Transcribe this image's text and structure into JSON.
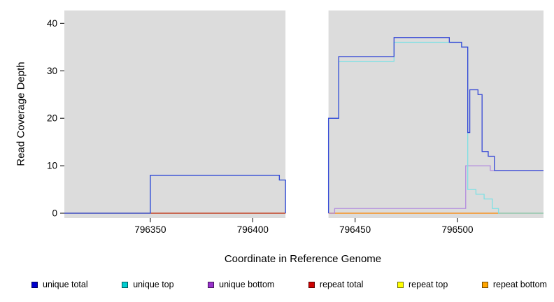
{
  "figure": {
    "xlabel": "Coordinate in Reference Genome",
    "ylabel": "Read Coverage Depth"
  },
  "chart_data": {
    "type": "line",
    "subtype": "step-coverage",
    "title": "",
    "xlabel": "Coordinate in Reference Genome",
    "ylabel": "Read Coverage Depth",
    "xlim": [
      796308,
      796542
    ],
    "ylim": [
      -1.03,
      42.7
    ],
    "xticks": [
      796350,
      796400,
      796450,
      796500
    ],
    "yticks": [
      0,
      10,
      20,
      30,
      40
    ],
    "plot_background": "#dcdcdc",
    "page_background": "#ffffff",
    "grid": false,
    "legend_position": "bottom",
    "gap_region": {
      "from": 796416,
      "to": 796437,
      "color": "#ffffff"
    },
    "draw_order": [
      "repeat top",
      "repeat total",
      "repeat bottom",
      "unique bottom",
      "unique top",
      "unique total"
    ],
    "series": [
      {
        "name": "unique total",
        "line_color": "#3346d6",
        "segments": [
          [
            [
              796308,
              0
            ],
            [
              796350,
              8
            ],
            [
              796413,
              7
            ],
            [
              796416,
              0
            ]
          ],
          [
            [
              796437,
              0
            ],
            [
              796437,
              20
            ],
            [
              796442,
              33
            ],
            [
              796469,
              37
            ],
            [
              796496,
              36
            ],
            [
              796502,
              35
            ],
            [
              796505,
              17
            ],
            [
              796506,
              26
            ],
            [
              796510,
              25
            ],
            [
              796512,
              13
            ],
            [
              796515,
              12
            ],
            [
              796518,
              9
            ],
            [
              796542,
              9
            ]
          ]
        ]
      },
      {
        "name": "unique top",
        "line_color": "#7fe0e4",
        "segments": [
          [
            [
              796308,
              0
            ],
            [
              796350,
              8
            ],
            [
              796413,
              7
            ],
            [
              796416,
              0
            ]
          ],
          [
            [
              796437,
              0
            ],
            [
              796437,
              20
            ],
            [
              796442,
              32
            ],
            [
              796469,
              36
            ],
            [
              796502,
              35
            ],
            [
              796505,
              5
            ],
            [
              796509,
              4
            ],
            [
              796513,
              3
            ],
            [
              796517,
              1
            ],
            [
              796520,
              0
            ],
            [
              796542,
              0
            ]
          ]
        ]
      },
      {
        "name": "unique bottom",
        "line_color": "#b48ede",
        "segments": [
          [
            [
              796308,
              0
            ],
            [
              796350,
              0
            ]
          ],
          [
            [
              796437,
              0
            ],
            [
              796440,
              1
            ],
            [
              796504,
              10
            ],
            [
              796516,
              9
            ],
            [
              796542,
              9
            ]
          ]
        ]
      },
      {
        "name": "repeat total",
        "line_color": "#bb2222",
        "segments": [
          [
            [
              796308,
              0
            ],
            [
              796416,
              0
            ]
          ],
          [
            [
              796437,
              0
            ],
            [
              796542,
              0
            ]
          ]
        ]
      },
      {
        "name": "repeat top",
        "line_color": "#e8e800",
        "segments": [
          [
            [
              796308,
              0
            ],
            [
              796416,
              0
            ]
          ],
          [
            [
              796437,
              0
            ],
            [
              796542,
              0
            ]
          ]
        ]
      },
      {
        "name": "repeat bottom",
        "line_color": "#ff9d2e",
        "segments": [
          [
            [
              796437,
              0
            ],
            [
              796542,
              0
            ]
          ]
        ]
      }
    ]
  },
  "legend": {
    "items": [
      {
        "label": "unique total",
        "color": "#0000cd"
      },
      {
        "label": "unique top",
        "color": "#00ced1"
      },
      {
        "label": "unique bottom",
        "color": "#9932cc"
      },
      {
        "label": "repeat total",
        "color": "#cd0000"
      },
      {
        "label": "repeat top",
        "color": "#ffff00"
      },
      {
        "label": "repeat bottom",
        "color": "#ffa500"
      }
    ]
  }
}
